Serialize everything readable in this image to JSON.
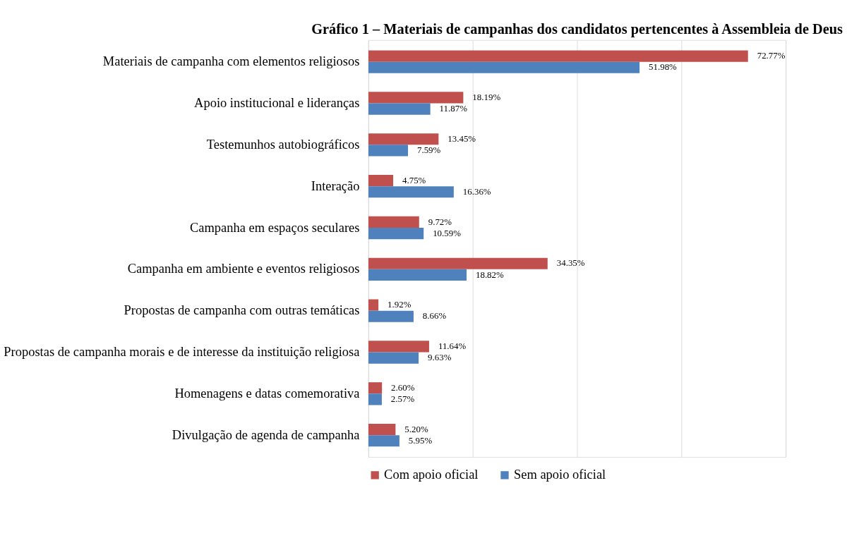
{
  "chart_data": {
    "type": "bar",
    "orientation": "horizontal",
    "title": "Gráfico 1 – Materiais de campanhas dos candidatos pertencentes à Assembleia de Deus",
    "categories": [
      "Materiais de campanha com elementos religiosos",
      "Apoio institucional e lideranças",
      "Testemunhos autobiográficos",
      "Interação",
      "Campanha em espaços seculares",
      "Campanha em ambiente e eventos religiosos",
      "Propostas de campanha com outras temáticas",
      "Propostas de campanha morais e de interesse da instituição religiosa",
      "Homenagens e datas comemorativa",
      "Divulgação de agenda de campanha"
    ],
    "series": [
      {
        "name": "Com apoio oficial",
        "color": "#c0504d",
        "values": [
          72.77,
          18.19,
          13.45,
          4.75,
          9.72,
          34.35,
          1.92,
          11.64,
          2.6,
          5.2
        ],
        "value_labels": [
          "72.77%",
          "18.19%",
          "13.45%",
          "4.75%",
          "9.72%",
          "34.35%",
          "1.92%",
          "11.64%",
          "2.60%",
          "5.20%"
        ]
      },
      {
        "name": "Sem apoio oficial",
        "color": "#4f81bd",
        "values": [
          51.98,
          11.87,
          7.59,
          16.36,
          10.59,
          18.82,
          8.66,
          9.63,
          2.57,
          5.95
        ],
        "value_labels": [
          "51.98%",
          "11.87%",
          "7.59%",
          "16.36%",
          "10.59%",
          "18.82%",
          "8.66%",
          "9.63%",
          "2.57%",
          "5.95%"
        ]
      }
    ],
    "xlim": [
      0,
      80
    ],
    "xticks": [
      {
        "value": 0,
        "label": null
      },
      {
        "value": 20,
        "label": null
      },
      {
        "value": 40,
        "label": null
      },
      {
        "value": 60,
        "label": null
      },
      {
        "value": 80,
        "label": null
      }
    ],
    "tick_labels": "y",
    "grid": "x",
    "legend": "bottom"
  }
}
